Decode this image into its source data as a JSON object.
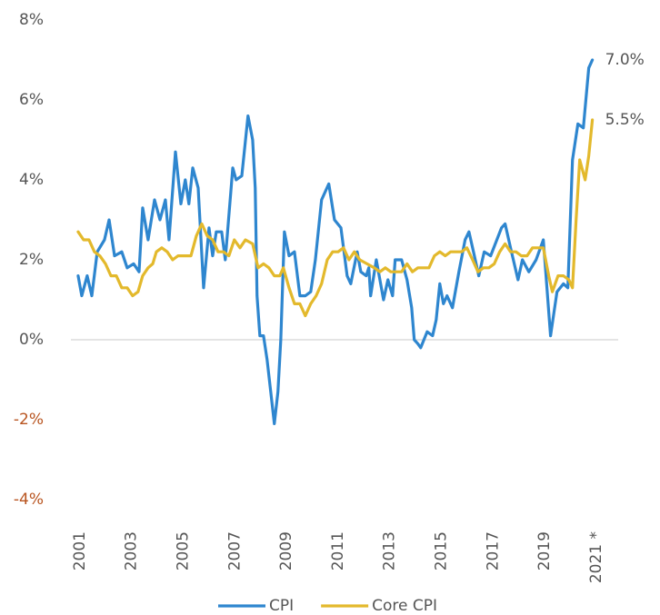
{
  "chart_data": {
    "type": "line",
    "legend": "bottom",
    "zero_line": true,
    "negative_tick_color": "#b8541f",
    "tick_color": "#555555",
    "xlim": [
      2000.65,
      2021.85
    ],
    "xticks": [
      2001,
      2003,
      2005,
      2007,
      2009,
      2011,
      2013,
      2015,
      2017,
      2019,
      {
        "value": 2021,
        "label": "2021 *"
      }
    ],
    "ylim": [
      -4,
      8
    ],
    "yticks": [
      {
        "value": -4,
        "label": "-4%"
      },
      {
        "value": -2,
        "label": "-2%"
      },
      {
        "value": 0,
        "label": "0%"
      },
      {
        "value": 2,
        "label": "2%"
      },
      {
        "value": 4,
        "label": "4%"
      },
      {
        "value": 6,
        "label": "6%"
      },
      {
        "value": 8,
        "label": "8%"
      }
    ],
    "annotations": [
      {
        "text": "7.0%"
      },
      {
        "text": "5.5%"
      }
    ],
    "series": [
      {
        "name": "CPI",
        "color": "#2e86cf",
        "x": [
          2000.93,
          2001.07,
          2001.28,
          2001.46,
          2001.67,
          2001.95,
          2002.13,
          2002.34,
          2002.62,
          2002.83,
          2003.08,
          2003.29,
          2003.43,
          2003.64,
          2003.89,
          2004.1,
          2004.31,
          2004.45,
          2004.7,
          2004.91,
          2005.08,
          2005.22,
          2005.37,
          2005.58,
          2005.79,
          2006.0,
          2006.14,
          2006.28,
          2006.49,
          2006.63,
          2006.92,
          2007.05,
          2007.27,
          2007.51,
          2007.69,
          2007.79,
          2007.86,
          2007.97,
          2008.11,
          2008.25,
          2008.39,
          2008.53,
          2008.67,
          2008.78,
          2008.92,
          2009.1,
          2009.31,
          2009.52,
          2009.73,
          2009.94,
          2010.12,
          2010.36,
          2010.64,
          2010.86,
          2011.11,
          2011.35,
          2011.49,
          2011.74,
          2011.88,
          2012.09,
          2012.19,
          2012.26,
          2012.48,
          2012.62,
          2012.76,
          2012.93,
          2013.11,
          2013.21,
          2013.46,
          2013.67,
          2013.85,
          2013.95,
          2014.09,
          2014.2,
          2014.45,
          2014.66,
          2014.8,
          2014.94,
          2015.08,
          2015.22,
          2015.43,
          2015.68,
          2015.92,
          2016.07,
          2016.28,
          2016.45,
          2016.66,
          2016.91,
          2017.33,
          2017.47,
          2017.68,
          2017.97,
          2018.14,
          2018.39,
          2018.67,
          2018.95,
          2019.23,
          2019.48,
          2019.73,
          2019.9,
          2020.08,
          2020.29,
          2020.5,
          2020.71,
          2020.85
        ],
        "values": [
          1.6,
          1.1,
          1.6,
          1.1,
          2.2,
          2.5,
          3.0,
          2.1,
          2.2,
          1.8,
          1.9,
          1.7,
          3.3,
          2.5,
          3.5,
          3.0,
          3.5,
          2.5,
          4.7,
          3.4,
          4.0,
          3.4,
          4.3,
          3.8,
          1.3,
          2.8,
          2.1,
          2.7,
          2.7,
          2.0,
          4.3,
          4.0,
          4.1,
          5.6,
          5.0,
          3.8,
          1.1,
          0.1,
          0.1,
          -0.5,
          -1.3,
          -2.1,
          -1.3,
          0.0,
          2.7,
          2.1,
          2.2,
          1.1,
          1.1,
          1.2,
          2.0,
          3.5,
          3.9,
          3.0,
          2.8,
          1.6,
          1.4,
          2.2,
          1.7,
          1.6,
          1.8,
          1.1,
          2.0,
          1.5,
          1.0,
          1.5,
          1.1,
          2.0,
          2.0,
          1.5,
          0.8,
          0.0,
          -0.1,
          -0.2,
          0.2,
          0.1,
          0.5,
          1.4,
          0.9,
          1.1,
          0.8,
          1.7,
          2.5,
          2.7,
          2.1,
          1.6,
          2.2,
          2.1,
          2.8,
          2.9,
          2.3,
          1.5,
          2.0,
          1.7,
          2.0,
          2.5,
          0.1,
          1.2,
          1.4,
          1.3,
          4.5,
          5.4,
          5.3,
          6.8,
          7.0
        ]
      },
      {
        "name": "Core CPI",
        "color": "#e3b92c",
        "x": [
          2000.93,
          2001.14,
          2001.35,
          2001.56,
          2001.77,
          2001.99,
          2002.2,
          2002.41,
          2002.62,
          2002.83,
          2003.04,
          2003.25,
          2003.43,
          2003.64,
          2003.82,
          2003.96,
          2004.17,
          2004.38,
          2004.59,
          2004.8,
          2005.01,
          2005.3,
          2005.51,
          2005.72,
          2005.93,
          2006.14,
          2006.35,
          2006.56,
          2006.77,
          2006.98,
          2007.2,
          2007.41,
          2007.69,
          2007.9,
          2008.11,
          2008.32,
          2008.53,
          2008.74,
          2008.88,
          2009.1,
          2009.31,
          2009.52,
          2009.73,
          2009.94,
          2010.15,
          2010.36,
          2010.58,
          2010.79,
          2011.0,
          2011.21,
          2011.42,
          2011.63,
          2011.84,
          2012.12,
          2012.4,
          2012.62,
          2012.83,
          2013.04,
          2013.25,
          2013.46,
          2013.67,
          2013.88,
          2014.09,
          2014.3,
          2014.52,
          2014.73,
          2014.94,
          2015.15,
          2015.36,
          2015.57,
          2015.78,
          2015.99,
          2016.21,
          2016.42,
          2016.63,
          2016.84,
          2017.05,
          2017.26,
          2017.47,
          2017.68,
          2017.89,
          2018.1,
          2018.32,
          2018.53,
          2018.74,
          2018.95,
          2019.16,
          2019.3,
          2019.52,
          2019.73,
          2019.94,
          2020.08,
          2020.22,
          2020.36,
          2020.57,
          2020.71,
          2020.85
        ],
        "values": [
          2.7,
          2.5,
          2.5,
          2.2,
          2.1,
          1.9,
          1.6,
          1.6,
          1.3,
          1.3,
          1.1,
          1.2,
          1.6,
          1.8,
          1.9,
          2.2,
          2.3,
          2.2,
          2.0,
          2.1,
          2.1,
          2.1,
          2.6,
          2.9,
          2.6,
          2.5,
          2.2,
          2.2,
          2.1,
          2.5,
          2.3,
          2.5,
          2.4,
          1.8,
          1.9,
          1.8,
          1.6,
          1.6,
          1.8,
          1.3,
          0.9,
          0.9,
          0.6,
          0.9,
          1.1,
          1.4,
          2.0,
          2.2,
          2.2,
          2.3,
          2.0,
          2.2,
          2.0,
          1.9,
          1.8,
          1.7,
          1.8,
          1.7,
          1.7,
          1.7,
          1.9,
          1.7,
          1.8,
          1.8,
          1.8,
          2.1,
          2.2,
          2.1,
          2.2,
          2.2,
          2.2,
          2.3,
          2.0,
          1.7,
          1.8,
          1.8,
          1.9,
          2.2,
          2.4,
          2.2,
          2.2,
          2.1,
          2.1,
          2.3,
          2.3,
          2.3,
          1.6,
          1.2,
          1.6,
          1.6,
          1.5,
          1.3,
          3.0,
          4.5,
          4.0,
          4.6,
          5.5
        ]
      }
    ]
  }
}
